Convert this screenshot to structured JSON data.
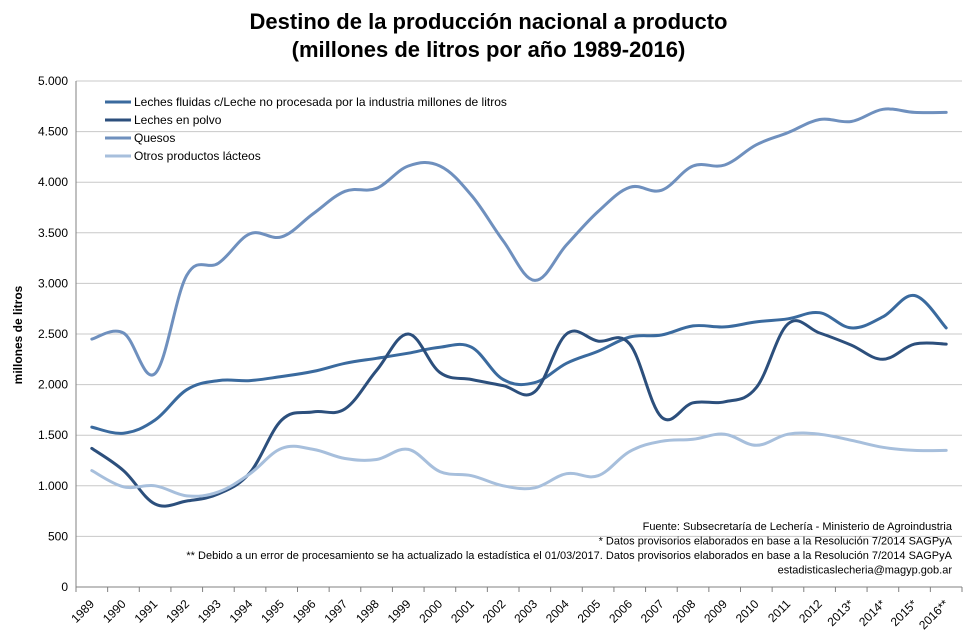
{
  "chart_data": {
    "type": "line",
    "title": "Destino de la producción nacional a producto",
    "subtitle": "(millones de litros por año 1989-2016)",
    "ylabel": "millones de litros",
    "xlabel": "",
    "ylim": [
      0,
      5000
    ],
    "yticks": [
      0,
      500,
      1000,
      1500,
      2000,
      2500,
      3000,
      3500,
      4000,
      4500,
      5000
    ],
    "ytick_labels": [
      "0",
      "500",
      "1.000",
      "1.500",
      "2.000",
      "2.500",
      "3.000",
      "3.500",
      "4.000",
      "4.500",
      "5.000"
    ],
    "grid": true,
    "legend_position": "top-left",
    "categories": [
      "1989",
      "1990",
      "1991",
      "1992",
      "1993",
      "1994",
      "1995",
      "1996",
      "1997",
      "1998",
      "1999",
      "2000",
      "2001",
      "2002",
      "2003",
      "2004",
      "2005",
      "2006",
      "2007",
      "2008",
      "2009",
      "2010",
      "2011",
      "2012",
      "2013*",
      "2014*",
      "2015*",
      "2016**"
    ],
    "series": [
      {
        "name": "Leches fluidas c/Leche no procesada por la industria millones de litros",
        "color": "#3a6a9e",
        "values": [
          1580,
          1520,
          1650,
          1950,
          2040,
          2040,
          2080,
          2130,
          2210,
          2260,
          2310,
          2370,
          2370,
          2050,
          2020,
          2210,
          2330,
          2470,
          2490,
          2580,
          2570,
          2620,
          2650,
          2710,
          2560,
          2670,
          2880,
          2560
        ]
      },
      {
        "name": "Leches en polvo",
        "color": "#2c4f7c",
        "values": [
          1370,
          1150,
          820,
          850,
          920,
          1130,
          1650,
          1730,
          1760,
          2140,
          2500,
          2120,
          2050,
          1990,
          1930,
          2500,
          2430,
          2400,
          1680,
          1820,
          1830,
          1970,
          2600,
          2510,
          2390,
          2250,
          2400,
          2400
        ]
      },
      {
        "name": "Quesos",
        "color": "#6f90be",
        "values": [
          2450,
          2510,
          2110,
          3080,
          3200,
          3490,
          3460,
          3690,
          3910,
          3940,
          4160,
          4160,
          3870,
          3420,
          3030,
          3380,
          3710,
          3950,
          3920,
          4160,
          4170,
          4370,
          4490,
          4620,
          4600,
          4720,
          4690,
          4690
        ]
      },
      {
        "name": "Otros productos lácteos",
        "color": "#a7bfdc",
        "values": [
          1150,
          990,
          1000,
          900,
          940,
          1120,
          1370,
          1360,
          1270,
          1260,
          1360,
          1140,
          1100,
          1000,
          980,
          1120,
          1100,
          1340,
          1440,
          1460,
          1510,
          1400,
          1510,
          1510,
          1450,
          1380,
          1350,
          1350
        ]
      }
    ],
    "notes": [
      "Fuente: Subsecretaría de Lechería - Ministerio de Agroindustria",
      "* Datos provisorios elaborados en base a la Resolución 7/2014 SAGPyA",
      "** Debido  a un error de procesamiento se ha actualizado la estadística el 01/03/2017. Datos provisorios elaborados en base a la Resolución 7/2014 SAGPyA",
      "estadisticaslecheria@magyp.gob.ar"
    ]
  }
}
